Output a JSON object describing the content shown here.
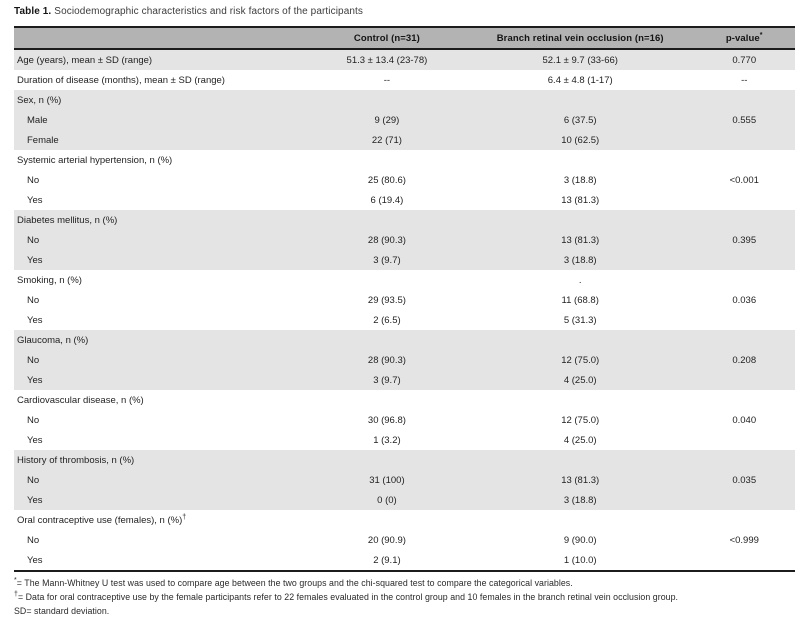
{
  "title": {
    "label": "Table 1.",
    "text": "Sociodemographic characteristics and risk factors of the participants"
  },
  "colors": {
    "header_bg": "#b3b3b3",
    "stripe_bg": "#e4e4e4",
    "border": "#1c1c1c"
  },
  "table": {
    "columns": [
      {
        "label": "",
        "sup": ""
      },
      {
        "label": "Control (n=31)",
        "sup": ""
      },
      {
        "label": "Branch retinal vein occlusion (n=16)",
        "sup": ""
      },
      {
        "label": "p-value",
        "sup": "*"
      }
    ],
    "rows": [
      {
        "label": "Age (years), mean ± SD (range)",
        "sup": "",
        "indent": 0,
        "control": "51.3 ± 13.4 (23-78)",
        "brvo": "52.1 ± 9.7 (33-66)",
        "p": "0.770",
        "shade": true
      },
      {
        "label": "Duration of disease (months), mean ± SD (range)",
        "sup": "",
        "indent": 0,
        "control": "--",
        "brvo": "6.4 ± 4.8 (1-17)",
        "p": "--",
        "shade": false
      },
      {
        "label": "Sex, n (%)",
        "sup": "",
        "indent": 0,
        "control": "",
        "brvo": "",
        "p": "",
        "shade": true
      },
      {
        "label": "Male",
        "sup": "",
        "indent": 1,
        "control": "9 (29)",
        "brvo": "6 (37.5)",
        "p": "0.555",
        "shade": true
      },
      {
        "label": "Female",
        "sup": "",
        "indent": 1,
        "control": "22 (71)",
        "brvo": "10 (62.5)",
        "p": "",
        "shade": true
      },
      {
        "label": "Systemic arterial hypertension, n (%)",
        "sup": "",
        "indent": 0,
        "control": "",
        "brvo": "",
        "p": "",
        "shade": false
      },
      {
        "label": "No",
        "sup": "",
        "indent": 1,
        "control": "25 (80.6)",
        "brvo": "3 (18.8)",
        "p": "<0.001",
        "shade": false
      },
      {
        "label": "Yes",
        "sup": "",
        "indent": 1,
        "control": "6 (19.4)",
        "brvo": "13 (81.3)",
        "p": "",
        "shade": false
      },
      {
        "label": "Diabetes mellitus, n (%)",
        "sup": "",
        "indent": 0,
        "control": "",
        "brvo": "",
        "p": "",
        "shade": true
      },
      {
        "label": "No",
        "sup": "",
        "indent": 1,
        "control": "28 (90.3)",
        "brvo": "13 (81.3)",
        "p": "0.395",
        "shade": true
      },
      {
        "label": "Yes",
        "sup": "",
        "indent": 1,
        "control": "3 (9.7)",
        "brvo": "3 (18.8)",
        "p": "",
        "shade": true
      },
      {
        "label": "Smoking, n (%)",
        "sup": "",
        "indent": 0,
        "control": "",
        "brvo": ".",
        "p": "",
        "shade": false
      },
      {
        "label": "No",
        "sup": "",
        "indent": 1,
        "control": "29 (93.5)",
        "brvo": "11 (68.8)",
        "p": "0.036",
        "shade": false
      },
      {
        "label": "Yes",
        "sup": "",
        "indent": 1,
        "control": "2 (6.5)",
        "brvo": "5 (31.3)",
        "p": "",
        "shade": false
      },
      {
        "label": "Glaucoma, n (%)",
        "sup": "",
        "indent": 0,
        "control": "",
        "brvo": "",
        "p": "",
        "shade": true
      },
      {
        "label": "No",
        "sup": "",
        "indent": 1,
        "control": "28 (90.3)",
        "brvo": "12 (75.0)",
        "p": "0.208",
        "shade": true
      },
      {
        "label": "Yes",
        "sup": "",
        "indent": 1,
        "control": "3 (9.7)",
        "brvo": "4 (25.0)",
        "p": "",
        "shade": true
      },
      {
        "label": "Cardiovascular disease, n (%)",
        "sup": "",
        "indent": 0,
        "control": "",
        "brvo": "",
        "p": "",
        "shade": false
      },
      {
        "label": "No",
        "sup": "",
        "indent": 1,
        "control": "30 (96.8)",
        "brvo": "12 (75.0)",
        "p": "0.040",
        "shade": false
      },
      {
        "label": "Yes",
        "sup": "",
        "indent": 1,
        "control": "1 (3.2)",
        "brvo": "4 (25.0)",
        "p": "",
        "shade": false
      },
      {
        "label": "History of thrombosis, n (%)",
        "sup": "",
        "indent": 0,
        "control": "",
        "brvo": "",
        "p": "",
        "shade": true
      },
      {
        "label": "No",
        "sup": "",
        "indent": 1,
        "control": "31 (100)",
        "brvo": "13 (81.3)",
        "p": "0.035",
        "shade": true
      },
      {
        "label": "Yes",
        "sup": "",
        "indent": 1,
        "control": "0 (0)",
        "brvo": "3 (18.8)",
        "p": "",
        "shade": true
      },
      {
        "label": "Oral contraceptive use (females), n (%)",
        "sup": "†",
        "indent": 0,
        "control": "",
        "brvo": "",
        "p": "",
        "shade": false
      },
      {
        "label": "No",
        "sup": "",
        "indent": 1,
        "control": "20 (90.9)",
        "brvo": "9 (90.0)",
        "p": "<0.999",
        "shade": false
      },
      {
        "label": "Yes",
        "sup": "",
        "indent": 1,
        "control": "2 (9.1)",
        "brvo": "1 (10.0)",
        "p": "",
        "shade": false
      }
    ]
  },
  "footnotes": [
    {
      "marker": "*",
      "sup": true,
      "sep": "=",
      "text": "The Mann-Whitney U test was used to compare age between the two groups and the chi-squared test to compare the categorical variables."
    },
    {
      "marker": "†",
      "sup": true,
      "sep": "=",
      "text": "Data for oral contraceptive use by the female participants refer to 22 females evaluated in the control group and 10 females in the branch retinal vein occlusion group."
    },
    {
      "marker": "SD",
      "sup": false,
      "sep": "=",
      "text": "standard deviation."
    }
  ]
}
